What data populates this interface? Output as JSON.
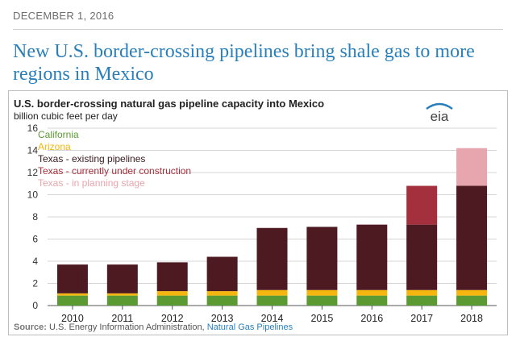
{
  "date": "DECEMBER 1, 2016",
  "headline": "New U.S. border-crossing pipelines bring shale gas to more regions in Mexico",
  "logo_text": "eia",
  "source": {
    "label": "Source:",
    "text": "U.S. Energy Information Administration,",
    "link": "Natural Gas Pipelines"
  },
  "colors": {
    "California": "#5b9a32",
    "Arizona": "#f5b70f",
    "Texas - existing pipelines": "#4e1a22",
    "Texas - currently under construction": "#a4303d",
    "Texas - in planning stage": "#e7a6ae"
  },
  "chart_data": {
    "type": "bar",
    "stacked": true,
    "title": "U.S. border-crossing natural gas pipeline capacity into Mexico",
    "subtitle": "billion cubic feet per day",
    "xlabel": "",
    "ylabel": "",
    "ylim": [
      0,
      16
    ],
    "yticks": [
      0,
      2,
      4,
      6,
      8,
      10,
      12,
      14,
      16
    ],
    "grid": true,
    "legend_position": "top-left",
    "categories": [
      "2010",
      "2011",
      "2012",
      "2013",
      "2014",
      "2015",
      "2016",
      "2017",
      "2018"
    ],
    "series": [
      {
        "name": "California",
        "color": "#5b9a32",
        "values": [
          0.9,
          0.9,
          0.9,
          0.9,
          0.9,
          0.9,
          0.9,
          0.9,
          0.9
        ]
      },
      {
        "name": "Arizona",
        "color": "#f5b70f",
        "values": [
          0.2,
          0.2,
          0.4,
          0.4,
          0.5,
          0.5,
          0.5,
          0.5,
          0.5
        ]
      },
      {
        "name": "Texas - existing pipelines",
        "color": "#4e1a22",
        "values": [
          2.6,
          2.6,
          2.6,
          3.1,
          5.6,
          5.7,
          5.9,
          5.9,
          9.4
        ]
      },
      {
        "name": "Texas - currently under construction",
        "color": "#a4303d",
        "values": [
          0,
          0,
          0,
          0,
          0,
          0,
          0,
          3.5,
          0
        ]
      },
      {
        "name": "Texas - in planning stage",
        "color": "#e7a6ae",
        "values": [
          0,
          0,
          0,
          0,
          0,
          0,
          0,
          0,
          3.4
        ]
      }
    ]
  }
}
